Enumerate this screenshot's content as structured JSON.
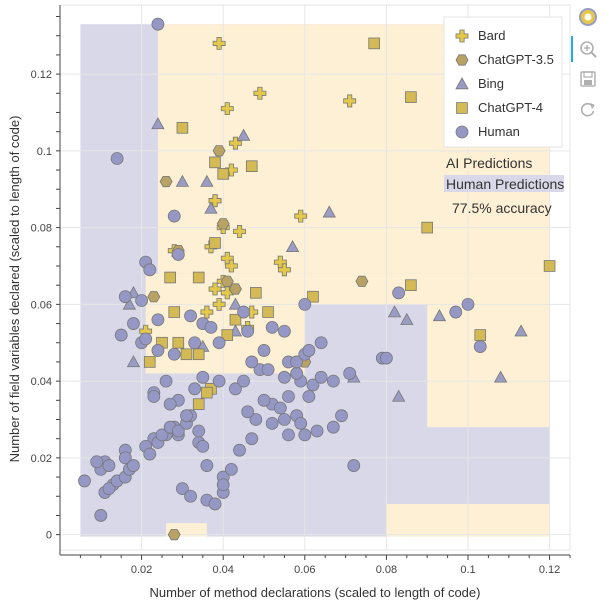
{
  "toolbar": {
    "items": [
      {
        "name": "bokeh-logo-icon",
        "interactable": false
      },
      {
        "name": "wheel-zoom-icon",
        "interactable": true
      },
      {
        "name": "save-icon",
        "interactable": true
      },
      {
        "name": "reset-icon",
        "interactable": true
      }
    ]
  },
  "colors": {
    "ai_region": "#fdf0d5",
    "human_region": "#d8d8e8",
    "bard": "#e3c84a",
    "chatgpt35": "#b8a264",
    "bing": "#9a9cc4",
    "chatgpt4": "#d4ba55",
    "human": "#9597c5",
    "marker_stroke": "#777777"
  },
  "chart_data": {
    "type": "scatter",
    "xlabel": "Number of method declarations (scaled to length of code)",
    "ylabel": "Number of field variables declared (scaled to length of code)",
    "xlim": [
      0.0,
      0.125
    ],
    "ylim": [
      -0.004,
      0.138
    ],
    "x_ticks": [
      0.02,
      0.04,
      0.06,
      0.08,
      0.1,
      0.12
    ],
    "x_tick_labels": [
      "0.02",
      "0.04",
      "0.06",
      "0.08",
      "0.1",
      "0.12"
    ],
    "y_ticks": [
      0,
      0.02,
      0.04,
      0.06,
      0.08,
      0.1,
      0.12
    ],
    "y_tick_labels": [
      "0",
      "0.02",
      "0.04",
      "0.06",
      "0.08",
      "0.1",
      "0.12"
    ],
    "grid": true,
    "legend_position": "top-right",
    "annotations": {
      "ai_label": "AI Predictions",
      "human_label": "Human Predictions",
      "accuracy": "77.5% accuracy"
    },
    "series": [
      {
        "name": "Bard",
        "marker": "plus",
        "color_key": "bard",
        "x": [
          0.039,
          0.041,
          0.049,
          0.038,
          0.042,
          0.043,
          0.071,
          0.04,
          0.038,
          0.044,
          0.059,
          0.041,
          0.037,
          0.054,
          0.055,
          0.042,
          0.04,
          0.038,
          0.028,
          0.047,
          0.041,
          0.039,
          0.021,
          0.046,
          0.036
        ],
        "y": [
          0.128,
          0.111,
          0.115,
          0.087,
          0.095,
          0.102,
          0.113,
          0.08,
          0.087,
          0.079,
          0.083,
          0.072,
          0.075,
          0.071,
          0.069,
          0.07,
          0.066,
          0.064,
          0.074,
          0.058,
          0.063,
          0.06,
          0.053,
          0.054,
          0.058
        ]
      },
      {
        "name": "ChatGPT-3.5",
        "marker": "hexagon",
        "color_key": "chatgpt35",
        "x": [
          0.039,
          0.026,
          0.04,
          0.029,
          0.043,
          0.023,
          0.06,
          0.074,
          0.041,
          0.028
        ],
        "y": [
          0.1,
          0.092,
          0.081,
          0.074,
          0.064,
          0.062,
          0.045,
          0.066,
          0.066,
          0.0
        ]
      },
      {
        "name": "Bing",
        "marker": "triangle",
        "color_key": "bing",
        "x": [
          0.024,
          0.045,
          0.03,
          0.036,
          0.037,
          0.066,
          0.057,
          0.018,
          0.017,
          0.043,
          0.082,
          0.085,
          0.093,
          0.113,
          0.108,
          0.083,
          0.072,
          0.043,
          0.035,
          0.018
        ],
        "y": [
          0.107,
          0.104,
          0.092,
          0.092,
          0.085,
          0.084,
          0.075,
          0.063,
          0.06,
          0.06,
          0.058,
          0.056,
          0.057,
          0.053,
          0.041,
          0.036,
          0.041,
          0.053,
          0.049,
          0.045
        ]
      },
      {
        "name": "ChatGPT-4",
        "marker": "square",
        "color_key": "chatgpt4",
        "x": [
          0.077,
          0.03,
          0.086,
          0.038,
          0.047,
          0.04,
          0.038,
          0.09,
          0.12,
          0.027,
          0.034,
          0.086,
          0.062,
          0.048,
          0.043,
          0.028,
          0.041,
          0.051,
          0.029,
          0.031,
          0.034,
          0.022,
          0.037,
          0.036,
          0.034,
          0.103,
          0.025
        ],
        "y": [
          0.128,
          0.106,
          0.114,
          0.097,
          0.096,
          0.094,
          0.076,
          0.08,
          0.07,
          0.067,
          0.067,
          0.065,
          0.062,
          0.063,
          0.056,
          0.058,
          0.052,
          0.058,
          0.05,
          0.047,
          0.047,
          0.045,
          0.038,
          0.037,
          0.034,
          0.052,
          0.05
        ]
      },
      {
        "name": "Human",
        "marker": "circle",
        "color_key": "human",
        "x": [
          0.024,
          0.014,
          0.028,
          0.029,
          0.021,
          0.022,
          0.02,
          0.024,
          0.032,
          0.052,
          0.055,
          0.064,
          0.046,
          0.056,
          0.067,
          0.059,
          0.06,
          0.083,
          0.1,
          0.097,
          0.103,
          0.016,
          0.018,
          0.015,
          0.02,
          0.021,
          0.028,
          0.024,
          0.033,
          0.035,
          0.039,
          0.043,
          0.045,
          0.049,
          0.052,
          0.055,
          0.058,
          0.062,
          0.071,
          0.079,
          0.08,
          0.023,
          0.026,
          0.028,
          0.029,
          0.016,
          0.016,
          0.011,
          0.01,
          0.012,
          0.013,
          0.011,
          0.012,
          0.014,
          0.016,
          0.017,
          0.018,
          0.021,
          0.022,
          0.024,
          0.025,
          0.027,
          0.029,
          0.031,
          0.032,
          0.034,
          0.035,
          0.036,
          0.04,
          0.04,
          0.042,
          0.044,
          0.047,
          0.048,
          0.05,
          0.054,
          0.056,
          0.058,
          0.059,
          0.061,
          0.063,
          0.067,
          0.069,
          0.072,
          0.009,
          0.006,
          0.01,
          0.03,
          0.032,
          0.036,
          0.038,
          0.04,
          0.046,
          0.029,
          0.052,
          0.023,
          0.055,
          0.058,
          0.06,
          0.023,
          0.027,
          0.031,
          0.034,
          0.026,
          0.033,
          0.039,
          0.047,
          0.05,
          0.051,
          0.035,
          0.037,
          0.045,
          0.056,
          0.06,
          0.061,
          0.064
        ],
        "y": [
          0.133,
          0.098,
          0.083,
          0.073,
          0.071,
          0.069,
          0.061,
          0.056,
          0.057,
          0.054,
          0.053,
          0.05,
          0.053,
          0.045,
          0.04,
          0.04,
          0.06,
          0.063,
          0.06,
          0.058,
          0.049,
          0.062,
          0.055,
          0.052,
          0.05,
          0.051,
          0.047,
          0.048,
          0.05,
          0.041,
          0.04,
          0.038,
          0.04,
          0.043,
          0.034,
          0.041,
          0.042,
          0.039,
          0.042,
          0.046,
          0.046,
          0.025,
          0.026,
          0.028,
          0.026,
          0.022,
          0.02,
          0.019,
          0.017,
          0.018,
          0.013,
          0.011,
          0.012,
          0.014,
          0.015,
          0.017,
          0.018,
          0.023,
          0.021,
          0.024,
          0.026,
          0.028,
          0.027,
          0.029,
          0.031,
          0.024,
          0.023,
          0.018,
          0.015,
          0.011,
          0.017,
          0.022,
          0.025,
          0.03,
          0.035,
          0.033,
          0.026,
          0.031,
          0.029,
          0.036,
          0.027,
          0.028,
          0.031,
          0.018,
          0.019,
          0.014,
          0.005,
          0.012,
          0.01,
          0.009,
          0.008,
          0.013,
          0.032,
          0.035,
          0.029,
          0.037,
          0.03,
          0.045,
          0.047,
          0.036,
          0.034,
          0.031,
          0.027,
          0.04,
          0.038,
          0.05,
          0.045,
          0.048,
          0.043,
          0.055,
          0.054,
          0.058,
          0.036,
          0.026,
          0.048,
          0.041
        ]
      }
    ]
  }
}
